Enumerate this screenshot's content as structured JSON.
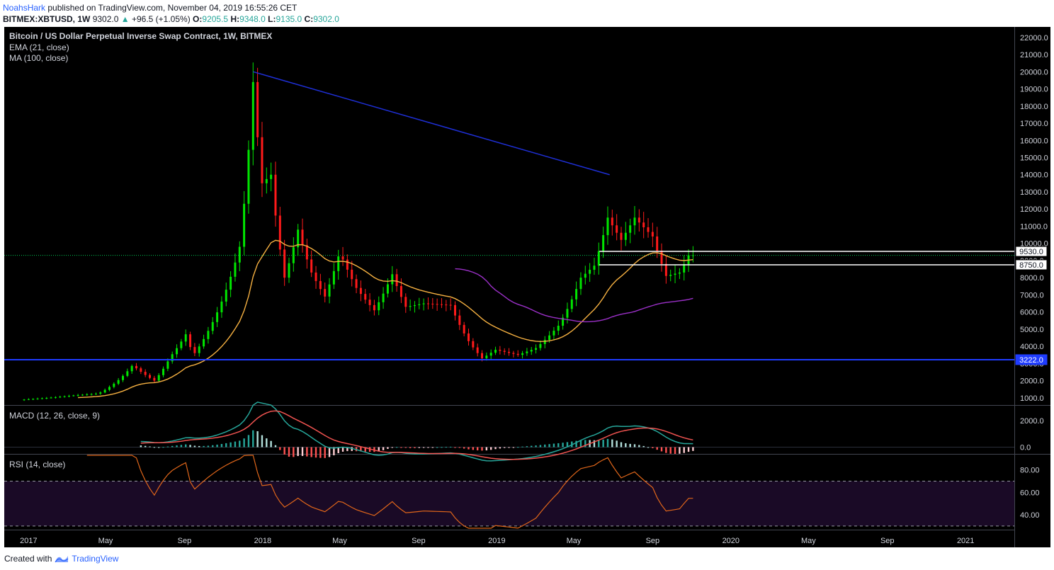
{
  "header": {
    "user": "NoahsHark",
    "published_text": "published on TradingView.com, November 04, 2019 16:55:26 CET",
    "symbol": "BITMEX:XBTUSD, 1W",
    "last": "9302.0",
    "change": "+96.5 (+1.05%)",
    "o_label": "O:",
    "o": "9205.5",
    "h_label": "H:",
    "h": "9348.0",
    "l_label": "L:",
    "l": "9135.0",
    "c_label": "C:",
    "c": "9302.0"
  },
  "footer": {
    "created_with": "Created with",
    "brand": "TradingView"
  },
  "colors": {
    "bg": "#000000",
    "up": "#00e600",
    "down": "#ff1a1a",
    "ema": "#f5b041",
    "ma": "#9b30c8",
    "trend": "#1e2fd6",
    "support": "#1f3cff",
    "macd": "#26a69a",
    "signal": "#ef5350",
    "rsi": "#e0661a"
  },
  "chart_data": [
    {
      "type": "candlestick",
      "title": "Bitcoin / US Dollar Perpetual Inverse Swap Contract, 1W, BITMEX",
      "studies": [
        "EMA (21, close)",
        "MA (100, close)"
      ],
      "x_ticks": [
        "2017",
        "May",
        "Sep",
        "2018",
        "May",
        "Sep",
        "2019",
        "May",
        "Sep",
        "2020",
        "May",
        "Sep",
        "2021"
      ],
      "y_ticks": [
        "22000.0",
        "21000.0",
        "20000.0",
        "19000.0",
        "18000.0",
        "17000.0",
        "16000.0",
        "15000.0",
        "14000.0",
        "13000.0",
        "12000.0",
        "11000.0",
        "10000.0",
        "9000.0",
        "8000.0",
        "7000.0",
        "6000.0",
        "5000.0",
        "4000.0",
        "3000.0",
        "2000.0",
        "1000.0"
      ],
      "ylim": [
        620,
        22530
      ],
      "price_labels": [
        {
          "value": 9530,
          "text": "9530.0"
        },
        {
          "value": 8750,
          "text": "8750.0"
        },
        {
          "value": 3222,
          "text": "3222.0"
        }
      ],
      "current_price": 9302,
      "trendline": {
        "from_date": "2017-12-17",
        "from_value": 20000,
        "to_date": "2019-06-26",
        "to_value": 14000
      },
      "support_level": 3222,
      "resistance_levels": [
        9530,
        8750
      ],
      "keypoints": [
        {
          "date": "2016-12-25",
          "close": 900
        },
        {
          "date": "2017-02-01",
          "close": 1000
        },
        {
          "date": "2017-03-15",
          "close": 1150
        },
        {
          "date": "2017-04-20",
          "close": 1250
        },
        {
          "date": "2017-05-20",
          "close": 2000
        },
        {
          "date": "2017-06-12",
          "close": 2900
        },
        {
          "date": "2017-07-16",
          "close": 2000
        },
        {
          "date": "2017-08-10",
          "close": 3400
        },
        {
          "date": "2017-09-03",
          "close": 4700
        },
        {
          "date": "2017-09-15",
          "close": 3500
        },
        {
          "date": "2017-10-08",
          "close": 4900
        },
        {
          "date": "2017-11-05",
          "close": 7300
        },
        {
          "date": "2017-11-26",
          "close": 9800
        },
        {
          "date": "2017-12-17",
          "close": 19400
        },
        {
          "date": "2017-12-31",
          "close": 13500
        },
        {
          "date": "2018-01-14",
          "close": 14000
        },
        {
          "date": "2018-02-04",
          "close": 8000
        },
        {
          "date": "2018-02-25",
          "close": 10800
        },
        {
          "date": "2018-03-18",
          "close": 8300
        },
        {
          "date": "2018-04-08",
          "close": 6900
        },
        {
          "date": "2018-05-01",
          "close": 9500
        },
        {
          "date": "2018-05-27",
          "close": 7400
        },
        {
          "date": "2018-06-24",
          "close": 6100
        },
        {
          "date": "2018-07-22",
          "close": 8200
        },
        {
          "date": "2018-08-12",
          "close": 6300
        },
        {
          "date": "2018-09-09",
          "close": 6500
        },
        {
          "date": "2018-10-21",
          "close": 6400
        },
        {
          "date": "2018-11-18",
          "close": 4300
        },
        {
          "date": "2018-12-09",
          "close": 3300
        },
        {
          "date": "2018-12-30",
          "close": 3800
        },
        {
          "date": "2019-02-03",
          "close": 3500
        },
        {
          "date": "2019-03-03",
          "close": 3900
        },
        {
          "date": "2019-04-07",
          "close": 5200
        },
        {
          "date": "2019-05-12",
          "close": 8000
        },
        {
          "date": "2019-06-02",
          "close": 8700
        },
        {
          "date": "2019-06-23",
          "close": 11500
        },
        {
          "date": "2019-07-14",
          "close": 10200
        },
        {
          "date": "2019-08-04",
          "close": 11500
        },
        {
          "date": "2019-09-01",
          "close": 10400
        },
        {
          "date": "2019-09-22",
          "close": 8100
        },
        {
          "date": "2019-10-13",
          "close": 8300
        },
        {
          "date": "2019-10-27",
          "close": 9300
        },
        {
          "date": "2019-11-04",
          "close": 9302
        }
      ]
    },
    {
      "type": "line",
      "title": "MACD (12, 26, close, 9)",
      "y_ticks": [
        "2000.0",
        "0.0"
      ],
      "ylim": [
        -450,
        3050
      ]
    },
    {
      "type": "line",
      "title": "RSI (14, close)",
      "y_ticks": [
        "80.00",
        "60.00",
        "40.00"
      ],
      "ylim": [
        28,
        93
      ],
      "band": [
        30,
        70
      ]
    }
  ]
}
